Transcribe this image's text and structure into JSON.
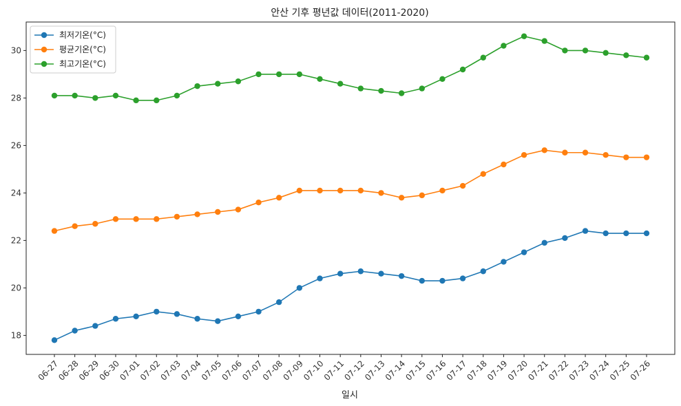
{
  "chart_data": {
    "type": "line",
    "title": "안산 기후 평년값 데이터(2011-2020)",
    "xlabel": "일시",
    "ylabel": "",
    "categories": [
      "06-27",
      "06-28",
      "06-29",
      "06-30",
      "07-01",
      "07-02",
      "07-03",
      "07-04",
      "07-05",
      "07-06",
      "07-07",
      "07-08",
      "07-09",
      "07-10",
      "07-11",
      "07-12",
      "07-13",
      "07-14",
      "07-15",
      "07-16",
      "07-17",
      "07-18",
      "07-19",
      "07-20",
      "07-21",
      "07-22",
      "07-23",
      "07-24",
      "07-25",
      "07-26"
    ],
    "ylim": [
      17.2,
      31.2
    ],
    "yticks": [
      18,
      20,
      22,
      24,
      26,
      28,
      30
    ],
    "grid": false,
    "legend_position": "top-left",
    "series": [
      {
        "name": "최저기온(°C)",
        "color": "#1f77b4",
        "values": [
          17.8,
          18.2,
          18.4,
          18.7,
          18.8,
          19.0,
          18.9,
          18.7,
          18.6,
          18.8,
          19.0,
          19.4,
          20.0,
          20.4,
          20.6,
          20.7,
          20.6,
          20.5,
          20.3,
          20.3,
          20.4,
          20.7,
          21.1,
          21.5,
          21.9,
          22.1,
          22.4,
          22.3,
          22.3,
          22.3
        ]
      },
      {
        "name": "평균기온(°C)",
        "color": "#ff7f0e",
        "values": [
          22.4,
          22.6,
          22.7,
          22.9,
          22.9,
          22.9,
          23.0,
          23.1,
          23.2,
          23.3,
          23.6,
          23.8,
          24.1,
          24.1,
          24.1,
          24.1,
          24.0,
          23.8,
          23.9,
          24.1,
          24.3,
          24.8,
          25.2,
          25.6,
          25.8,
          25.7,
          25.7,
          25.6,
          25.5,
          25.5
        ]
      },
      {
        "name": "최고기온(°C)",
        "color": "#2ca02c",
        "values": [
          28.1,
          28.1,
          28.0,
          28.1,
          27.9,
          27.9,
          28.1,
          28.5,
          28.6,
          28.7,
          29.0,
          29.0,
          29.0,
          28.8,
          28.6,
          28.4,
          28.3,
          28.2,
          28.4,
          28.8,
          29.2,
          29.7,
          30.2,
          30.6,
          30.4,
          30.0,
          30.0,
          29.9,
          29.8,
          29.7
        ]
      }
    ]
  }
}
